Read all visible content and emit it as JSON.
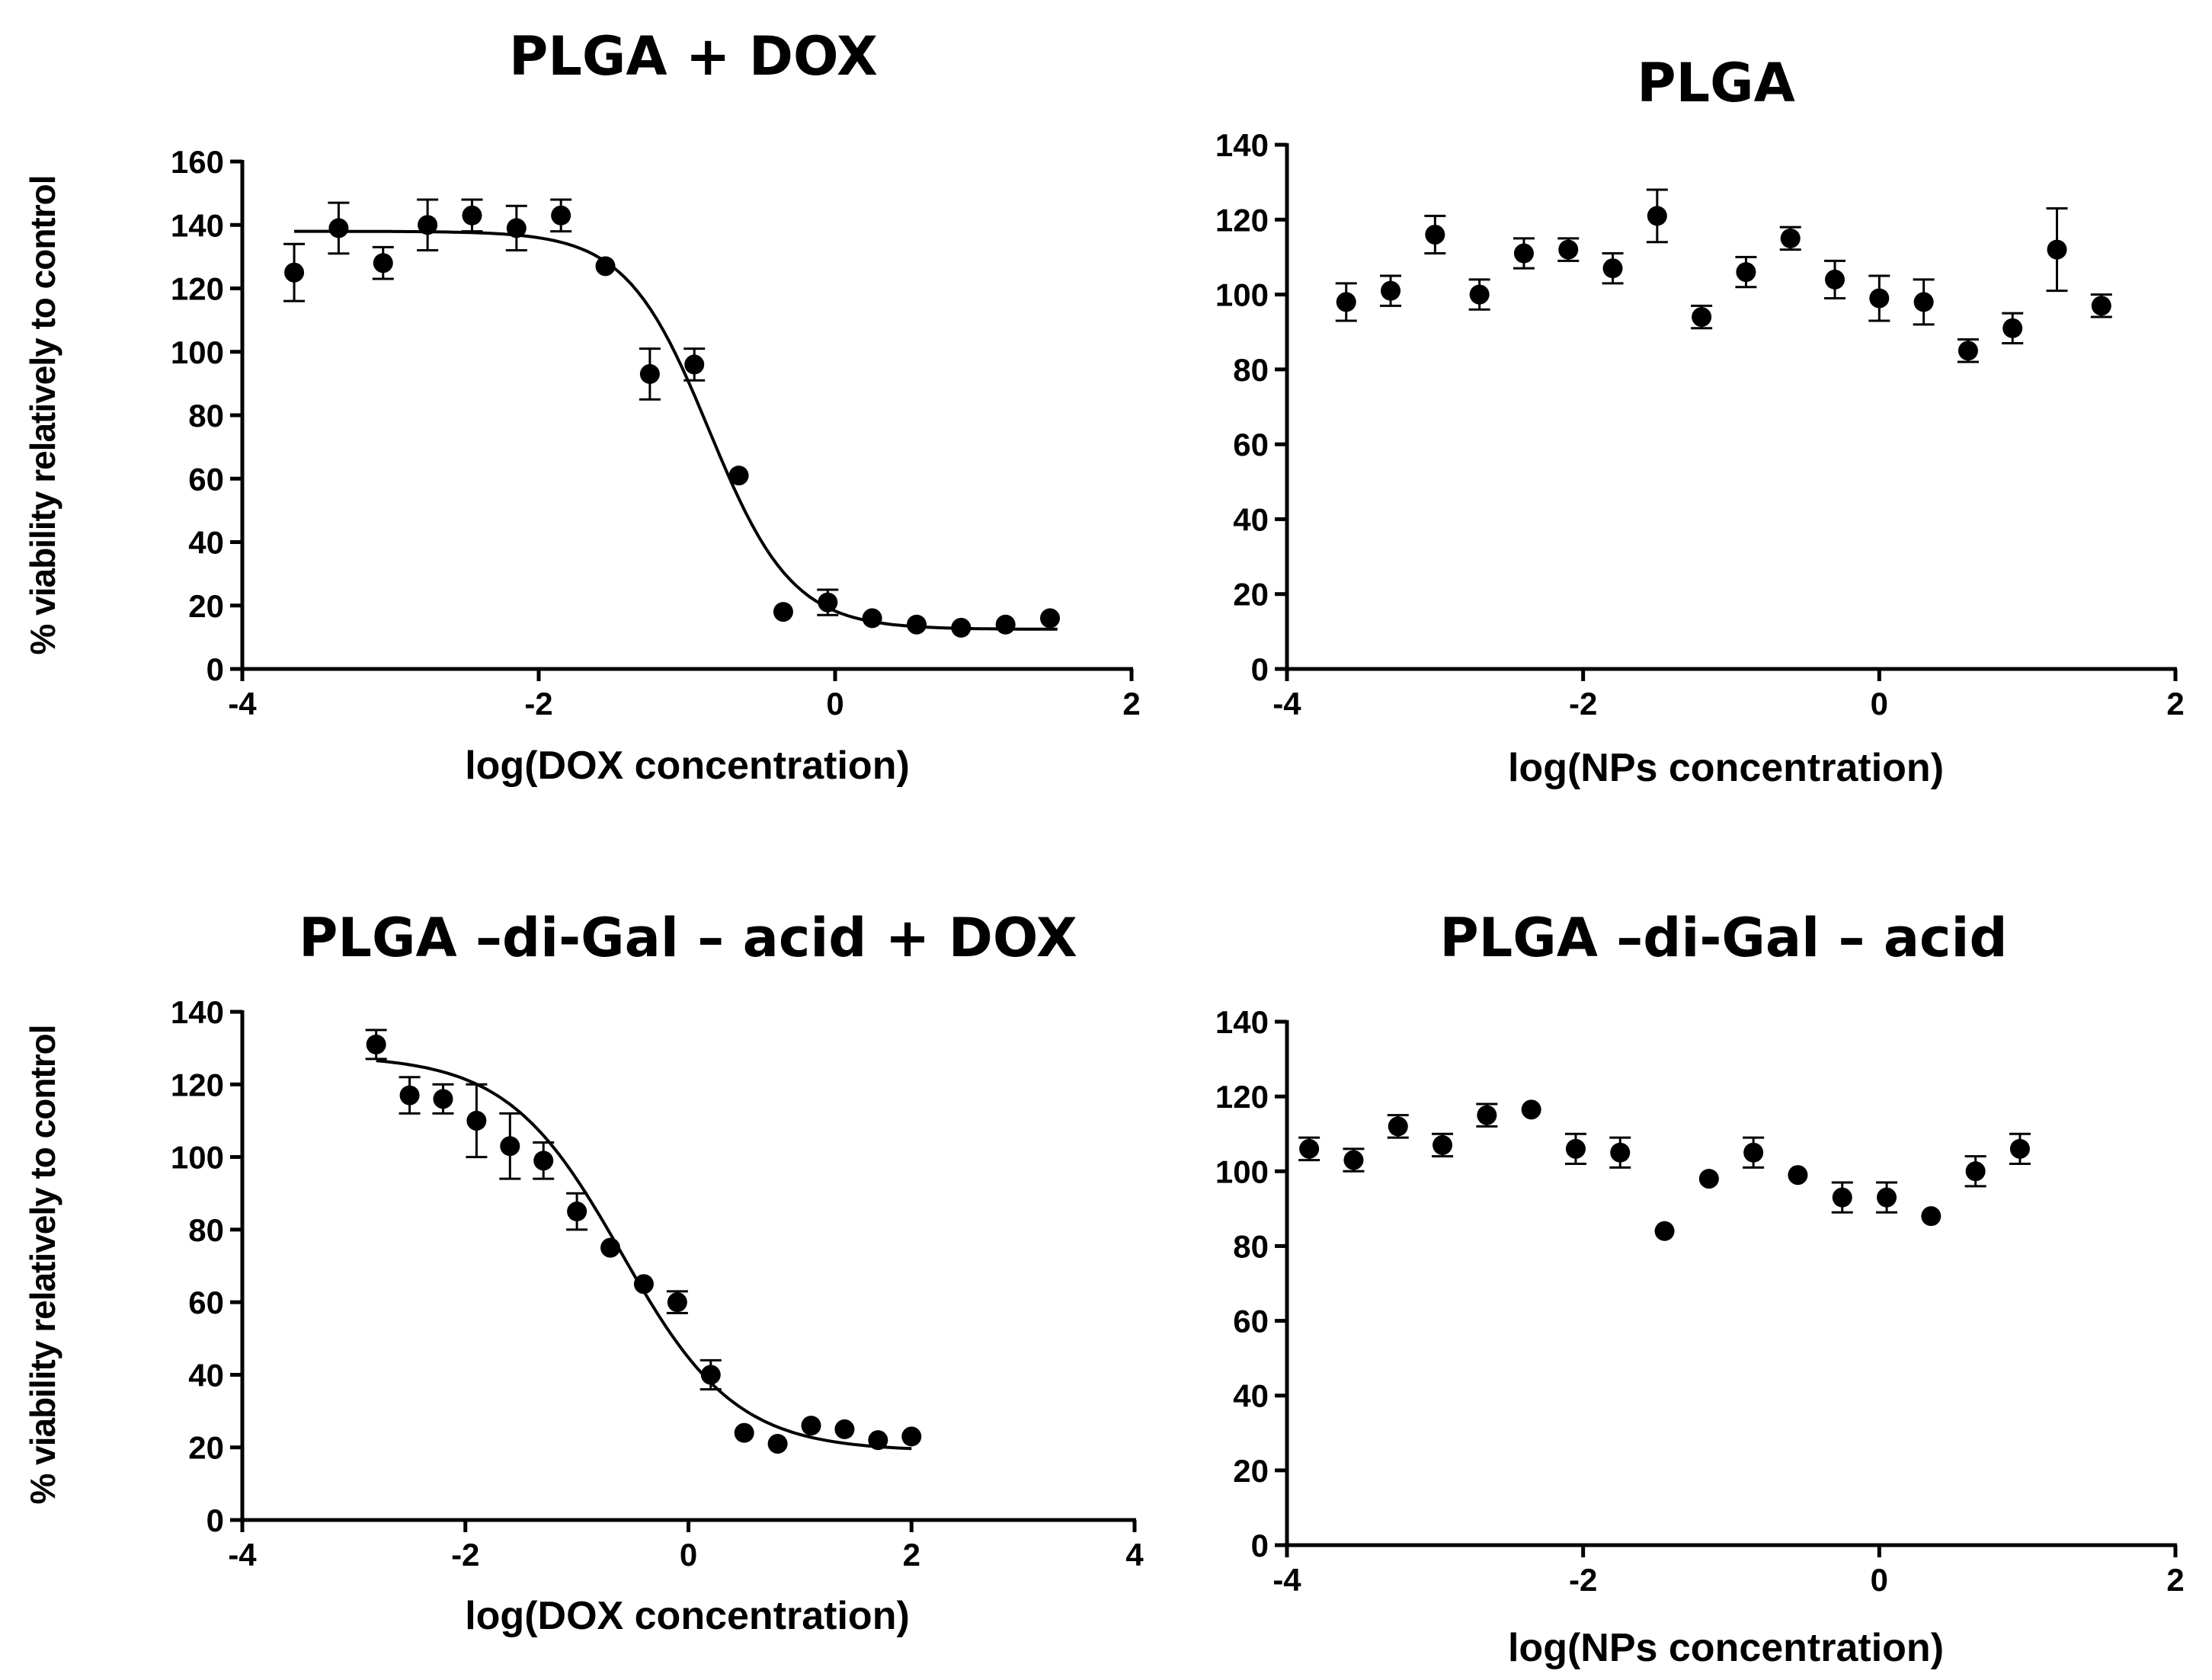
{
  "chart_data": [
    {
      "type": "scatter",
      "title": "PLGA + DOX",
      "xlabel": "log(DOX concentration)",
      "ylabel": "% viability relatively to control",
      "xlim": [
        -4,
        2
      ],
      "ylim": [
        0,
        160
      ],
      "xticks": [
        -4,
        -2,
        0,
        2
      ],
      "yticks": [
        0,
        20,
        40,
        60,
        80,
        100,
        120,
        140,
        160
      ],
      "fit_curve": {
        "top": 138,
        "bottom": 12.5,
        "logIC50": -0.85,
        "hill": -1.55,
        "x_range": [
          -3.65,
          1.5
        ]
      },
      "points": [
        {
          "x": -3.65,
          "y": 125,
          "err": 9
        },
        {
          "x": -3.35,
          "y": 139,
          "err": 8
        },
        {
          "x": -3.05,
          "y": 128,
          "err": 5
        },
        {
          "x": -2.75,
          "y": 140,
          "err": 8
        },
        {
          "x": -2.45,
          "y": 143,
          "err": 5
        },
        {
          "x": -2.15,
          "y": 139,
          "err": 7
        },
        {
          "x": -1.85,
          "y": 143,
          "err": 5
        },
        {
          "x": -1.55,
          "y": 127,
          "err": 0
        },
        {
          "x": -1.25,
          "y": 93,
          "err": 8
        },
        {
          "x": -0.95,
          "y": 96,
          "err": 5
        },
        {
          "x": -0.65,
          "y": 61,
          "err": 0
        },
        {
          "x": -0.35,
          "y": 18,
          "err": 0
        },
        {
          "x": -0.05,
          "y": 21,
          "err": 4
        },
        {
          "x": 0.25,
          "y": 16,
          "err": 0
        },
        {
          "x": 0.55,
          "y": 14,
          "err": 0
        },
        {
          "x": 0.85,
          "y": 13,
          "err": 0
        },
        {
          "x": 1.15,
          "y": 14,
          "err": 0
        },
        {
          "x": 1.45,
          "y": 16,
          "err": 0
        }
      ]
    },
    {
      "type": "scatter",
      "title": "PLGA",
      "xlabel": "log(NPs concentration)",
      "ylabel": "",
      "xlim": [
        -4,
        2
      ],
      "ylim": [
        0,
        140
      ],
      "xticks": [
        -4,
        -2,
        0,
        2
      ],
      "yticks": [
        0,
        20,
        40,
        60,
        80,
        100,
        120,
        140
      ],
      "points": [
        {
          "x": -3.6,
          "y": 98,
          "err": 5
        },
        {
          "x": -3.3,
          "y": 101,
          "err": 4
        },
        {
          "x": -3.0,
          "y": 116,
          "err": 5
        },
        {
          "x": -2.7,
          "y": 100,
          "err": 4
        },
        {
          "x": -2.4,
          "y": 111,
          "err": 4
        },
        {
          "x": -2.1,
          "y": 112,
          "err": 3
        },
        {
          "x": -1.8,
          "y": 107,
          "err": 4
        },
        {
          "x": -1.5,
          "y": 121,
          "err": 7
        },
        {
          "x": -1.2,
          "y": 94,
          "err": 3
        },
        {
          "x": -0.9,
          "y": 106,
          "err": 4
        },
        {
          "x": -0.6,
          "y": 115,
          "err": 3
        },
        {
          "x": -0.3,
          "y": 104,
          "err": 5
        },
        {
          "x": 0.0,
          "y": 99,
          "err": 6
        },
        {
          "x": 0.3,
          "y": 98,
          "err": 6
        },
        {
          "x": 0.6,
          "y": 85,
          "err": 3
        },
        {
          "x": 0.9,
          "y": 91,
          "err": 4
        },
        {
          "x": 1.2,
          "y": 112,
          "err": 11
        },
        {
          "x": 1.5,
          "y": 97,
          "err": 3
        }
      ]
    },
    {
      "type": "scatter",
      "title": "PLGA –di-Gal – acid + DOX",
      "xlabel": "log(DOX concentration)",
      "ylabel": "% viability relatively to control",
      "xlim": [
        -4,
        4
      ],
      "ylim": [
        0,
        140
      ],
      "xticks": [
        -4,
        -2,
        0,
        2,
        4
      ],
      "yticks": [
        0,
        20,
        40,
        60,
        80,
        100,
        120,
        140
      ],
      "fit_curve": {
        "top": 128,
        "bottom": 19,
        "logIC50": -0.6,
        "hill": -0.85,
        "x_range": [
          -2.8,
          2.0
        ]
      },
      "points": [
        {
          "x": -2.8,
          "y": 131,
          "err": 4
        },
        {
          "x": -2.5,
          "y": 117,
          "err": 5
        },
        {
          "x": -2.2,
          "y": 116,
          "err": 4
        },
        {
          "x": -1.9,
          "y": 110,
          "err": 10
        },
        {
          "x": -1.6,
          "y": 103,
          "err": 9
        },
        {
          "x": -1.3,
          "y": 99,
          "err": 5
        },
        {
          "x": -1.0,
          "y": 85,
          "err": 5
        },
        {
          "x": -0.7,
          "y": 75,
          "err": 0
        },
        {
          "x": -0.4,
          "y": 65,
          "err": 0
        },
        {
          "x": -0.1,
          "y": 60,
          "err": 3
        },
        {
          "x": 0.2,
          "y": 40,
          "err": 4
        },
        {
          "x": 0.5,
          "y": 24,
          "err": 0
        },
        {
          "x": 0.8,
          "y": 21,
          "err": 0
        },
        {
          "x": 1.1,
          "y": 26,
          "err": 0
        },
        {
          "x": 1.4,
          "y": 25,
          "err": 0
        },
        {
          "x": 1.7,
          "y": 22,
          "err": 0
        },
        {
          "x": 2.0,
          "y": 23,
          "err": 0
        }
      ]
    },
    {
      "type": "scatter",
      "title": "PLGA –di-Gal – acid",
      "xlabel": "log(NPs concentration)",
      "ylabel": "",
      "xlim": [
        -4,
        2
      ],
      "ylim": [
        0,
        140
      ],
      "xticks": [
        -4,
        -2,
        0,
        2
      ],
      "yticks": [
        0,
        20,
        40,
        60,
        80,
        100,
        120,
        140
      ],
      "points": [
        {
          "x": -3.85,
          "y": 106,
          "err": 3
        },
        {
          "x": -3.55,
          "y": 103,
          "err": 3
        },
        {
          "x": -3.25,
          "y": 112,
          "err": 3
        },
        {
          "x": -2.95,
          "y": 107,
          "err": 3
        },
        {
          "x": -2.65,
          "y": 115,
          "err": 3
        },
        {
          "x": -2.35,
          "y": 116.5,
          "err": 0
        },
        {
          "x": -2.05,
          "y": 106,
          "err": 4
        },
        {
          "x": -1.75,
          "y": 105,
          "err": 4
        },
        {
          "x": -1.45,
          "y": 84,
          "err": 0
        },
        {
          "x": -1.15,
          "y": 98,
          "err": 0
        },
        {
          "x": -0.85,
          "y": 105,
          "err": 4
        },
        {
          "x": -0.55,
          "y": 99,
          "err": 0
        },
        {
          "x": -0.25,
          "y": 93,
          "err": 4
        },
        {
          "x": 0.05,
          "y": 93,
          "err": 4
        },
        {
          "x": 0.35,
          "y": 88,
          "err": 0
        },
        {
          "x": 0.65,
          "y": 100,
          "err": 4
        },
        {
          "x": 0.95,
          "y": 106,
          "err": 4
        }
      ]
    }
  ]
}
